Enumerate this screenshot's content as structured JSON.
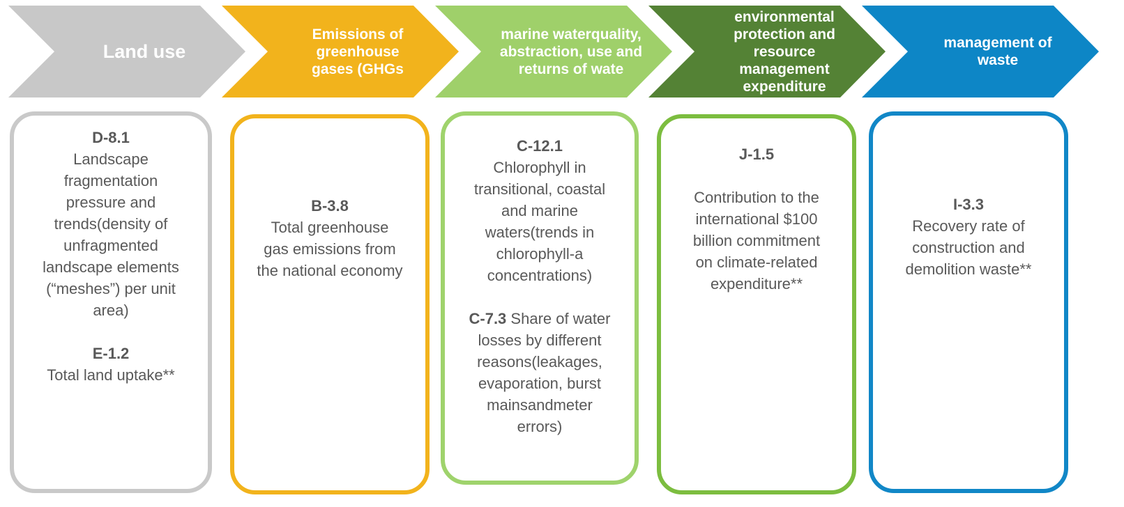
{
  "columns": [
    {
      "header": "Land use",
      "items": [
        {
          "code": "D-8.1",
          "text": "Landscape fragmentation pressure and trends(density of unfragmented landscape elements (“meshes”) per unit area)"
        },
        {
          "code": "E-1.2",
          "text": "Total land uptake**"
        }
      ]
    },
    {
      "header": "Emissions of greenhouse gases (GHGs",
      "items": [
        {
          "code": "B-3.8",
          "text": "Total greenhouse gas emissions from the national economy"
        }
      ]
    },
    {
      "header": "marine waterquality, abstraction, use and returns of wate",
      "items": [
        {
          "code": "C-12.1",
          "text": "Chlorophyll in transitional, coastal and marine waters(trends in chlorophyll-a concentrations)"
        },
        {
          "code": "C-7.3",
          "text": "Share of water losses by different reasons(leakages, evaporation, burst mainsandmeter errors)"
        }
      ]
    },
    {
      "header": "environmental protection and resource management expenditure",
      "items": [
        {
          "code": "J-1.5",
          "text": "Contribution to the international $100 billion commitment on climate-related expenditure**"
        }
      ]
    },
    {
      "header": "management of waste",
      "items": [
        {
          "code": "I-3.3",
          "text": "Recovery rate of construction and demolition waste**"
        }
      ]
    }
  ]
}
